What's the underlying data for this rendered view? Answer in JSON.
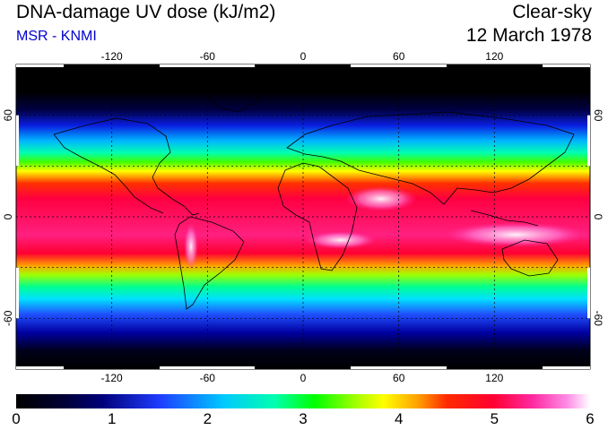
{
  "header": {
    "title": "DNA-damage UV dose (kJ/m2)",
    "subtitle": "MSR - KNMI",
    "condition": "Clear-sky",
    "date": "12 March 1978"
  },
  "map": {
    "lon_ticks": [
      "-120",
      "-60",
      "0",
      "60",
      "120"
    ],
    "lat_ticks": [
      "60",
      "0",
      "-60"
    ],
    "lat_ticks_right": [
      "60",
      "0",
      "-60"
    ]
  },
  "colorbar": {
    "ticks": [
      "0",
      "1",
      "2",
      "3",
      "4",
      "5",
      "6"
    ],
    "colors": [
      "#000000",
      "#00007a",
      "#1f3cff",
      "#00c8ff",
      "#00ff00",
      "#ffff00",
      "#ff2a00",
      "#ff0030",
      "#ff8ce6",
      "#ffffff"
    ]
  }
}
